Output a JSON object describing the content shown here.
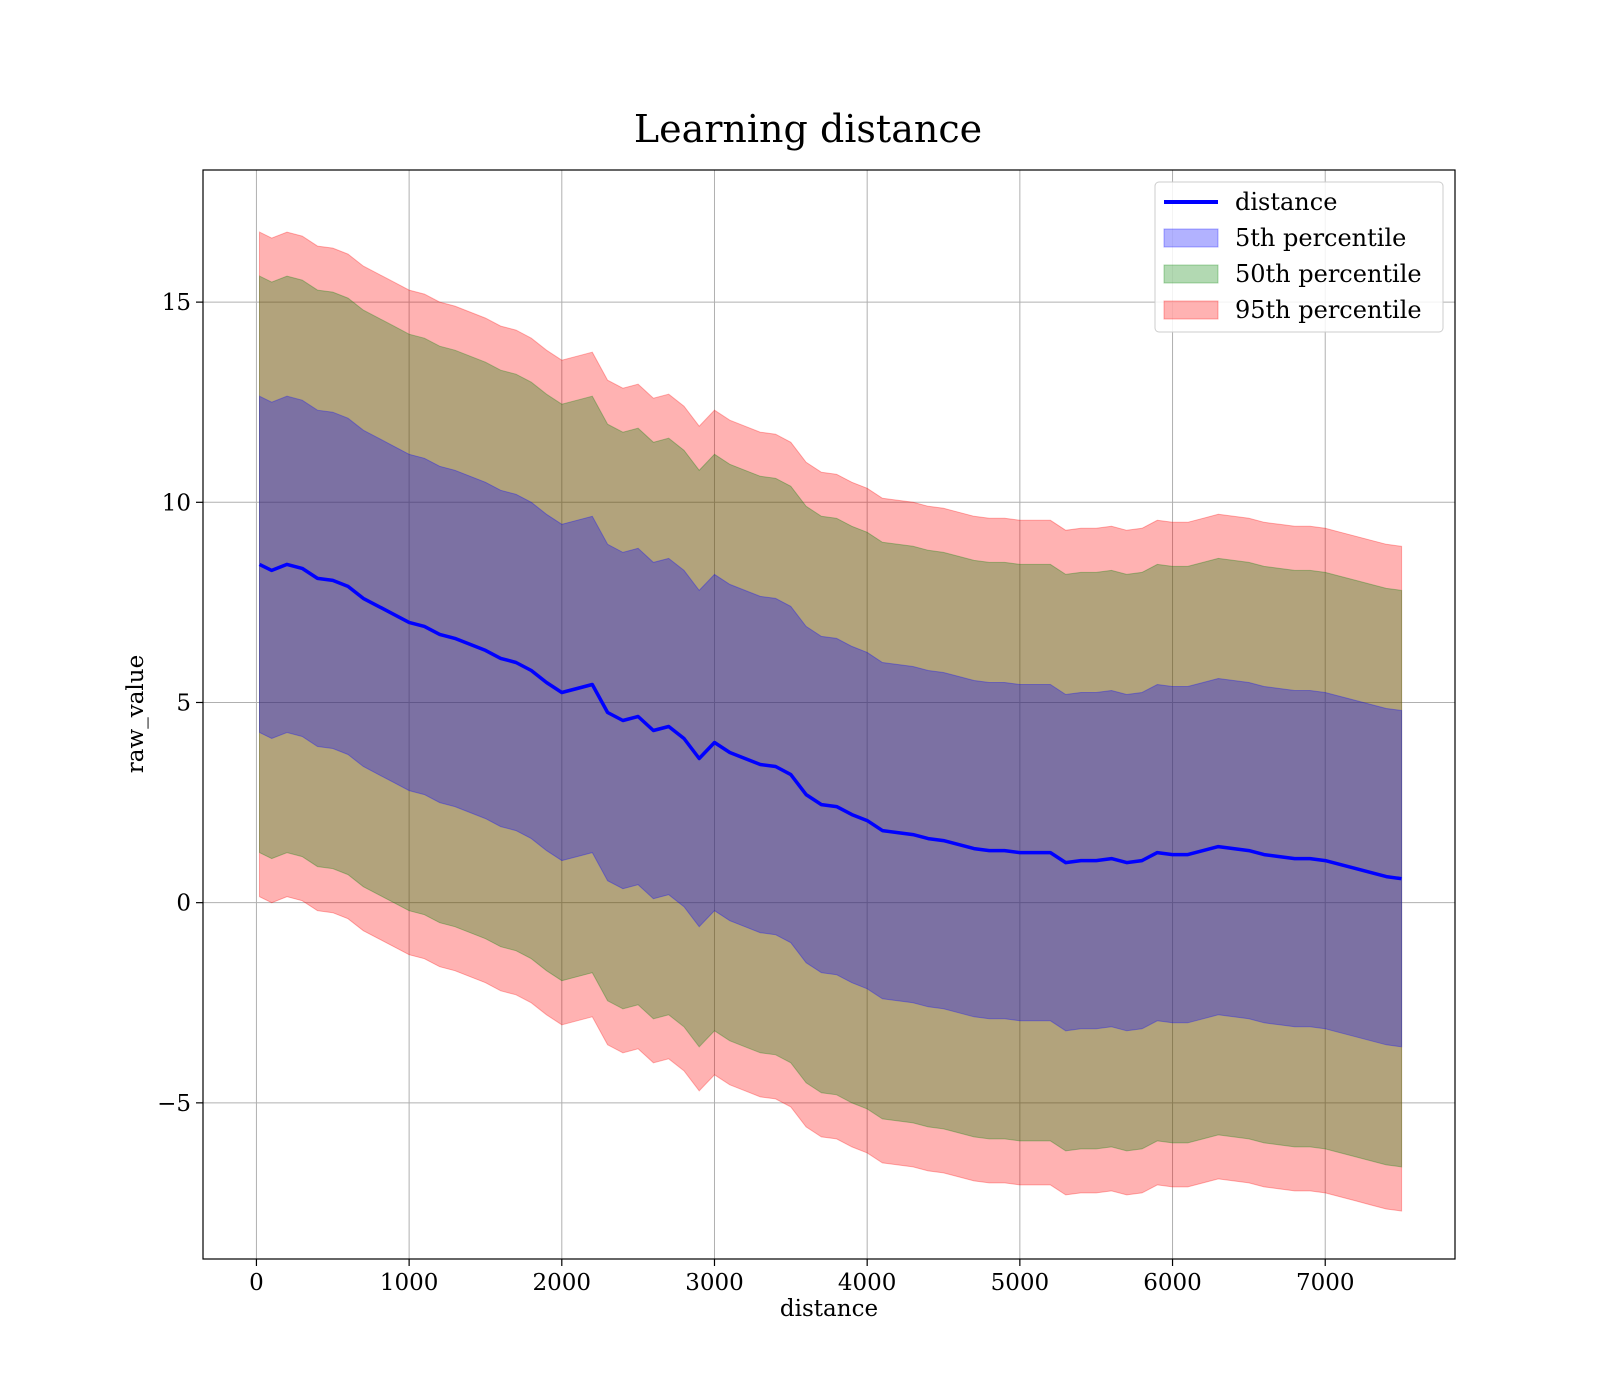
{
  "chart_data": {
    "type": "line",
    "title": "Learning distance",
    "xlabel": "distance",
    "ylabel": "raw_value",
    "xlim": [
      -350,
      7850
    ],
    "ylim": [
      -8.9,
      18.3
    ],
    "xticks": [
      0,
      1000,
      2000,
      3000,
      4000,
      5000,
      6000,
      7000
    ],
    "yticks": [
      -5,
      0,
      5,
      10,
      15
    ],
    "xtick_labels": [
      "0",
      "1000",
      "2000",
      "3000",
      "4000",
      "5000",
      "6000",
      "7000"
    ],
    "ytick_labels": [
      "−5",
      "0",
      "5",
      "10",
      "15"
    ],
    "grid": true,
    "legend_position": "upper right",
    "line": {
      "name": "distance",
      "color": "#0000ff",
      "x": [
        20,
        100,
        200,
        300,
        400,
        500,
        600,
        700,
        800,
        900,
        1000,
        1100,
        1200,
        1300,
        1400,
        1500,
        1600,
        1700,
        1800,
        1900,
        2000,
        2100,
        2200,
        2300,
        2400,
        2500,
        2600,
        2700,
        2800,
        2900,
        3000,
        3100,
        3200,
        3300,
        3400,
        3500,
        3600,
        3700,
        3800,
        3900,
        4000,
        4100,
        4200,
        4300,
        4400,
        4500,
        4600,
        4700,
        4800,
        4900,
        5000,
        5100,
        5200,
        5300,
        5400,
        5500,
        5600,
        5700,
        5800,
        5900,
        6000,
        6100,
        6200,
        6300,
        6400,
        6500,
        6600,
        6700,
        6800,
        6900,
        7000,
        7100,
        7200,
        7300,
        7400,
        7500
      ],
      "y": [
        8.45,
        8.3,
        8.45,
        8.35,
        8.1,
        8.05,
        7.9,
        7.6,
        7.4,
        7.2,
        7.0,
        6.9,
        6.7,
        6.6,
        6.45,
        6.3,
        6.1,
        6.0,
        5.8,
        5.5,
        5.25,
        5.35,
        5.45,
        4.75,
        4.55,
        4.65,
        4.3,
        4.4,
        4.1,
        3.6,
        4.0,
        3.75,
        3.6,
        3.45,
        3.4,
        3.2,
        2.7,
        2.45,
        2.4,
        2.2,
        2.05,
        1.8,
        1.75,
        1.7,
        1.6,
        1.55,
        1.45,
        1.35,
        1.3,
        1.3,
        1.25,
        1.25,
        1.25,
        1.0,
        1.05,
        1.05,
        1.1,
        1.0,
        1.05,
        1.25,
        1.2,
        1.2,
        1.3,
        1.4,
        1.35,
        1.3,
        1.2,
        1.15,
        1.1,
        1.1,
        1.05,
        0.95,
        0.85,
        0.75,
        0.65,
        0.6
      ]
    },
    "bands": [
      {
        "name": "5th percentile",
        "color": "#0000ff",
        "halfwidth": 4.2
      },
      {
        "name": "50th percentile",
        "color": "#008000",
        "halfwidth": 7.2
      },
      {
        "name": "95th percentile",
        "color": "#ff0000",
        "halfwidth": 8.3
      }
    ]
  }
}
